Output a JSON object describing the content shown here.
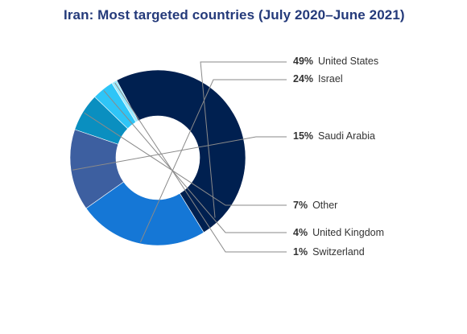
{
  "title": "Iran: Most targeted countries (July 2020–June 2021)",
  "chart_data": {
    "type": "pie",
    "title": "Iran: Most targeted countries (July 2020–June 2021)",
    "donut": true,
    "value_unit": "%",
    "legend_placement": "right",
    "slices": [
      {
        "label": "United States",
        "value": 49,
        "display": "49%",
        "color": "#002050"
      },
      {
        "label": "Israel",
        "value": 24,
        "display": "24%",
        "color": "#1577d6"
      },
      {
        "label": "Saudi Arabia",
        "value": 15,
        "display": "15%",
        "color": "#3d5fa0"
      },
      {
        "label": "Other",
        "value": 7,
        "display": "7%",
        "color": "#0a8fc0"
      },
      {
        "label": "United Kingdom",
        "value": 4,
        "display": "4%",
        "color": "#2ec5f7"
      },
      {
        "label": "Switzerland",
        "value": 1,
        "display": "1%",
        "color": "#9ee9fb"
      }
    ]
  }
}
